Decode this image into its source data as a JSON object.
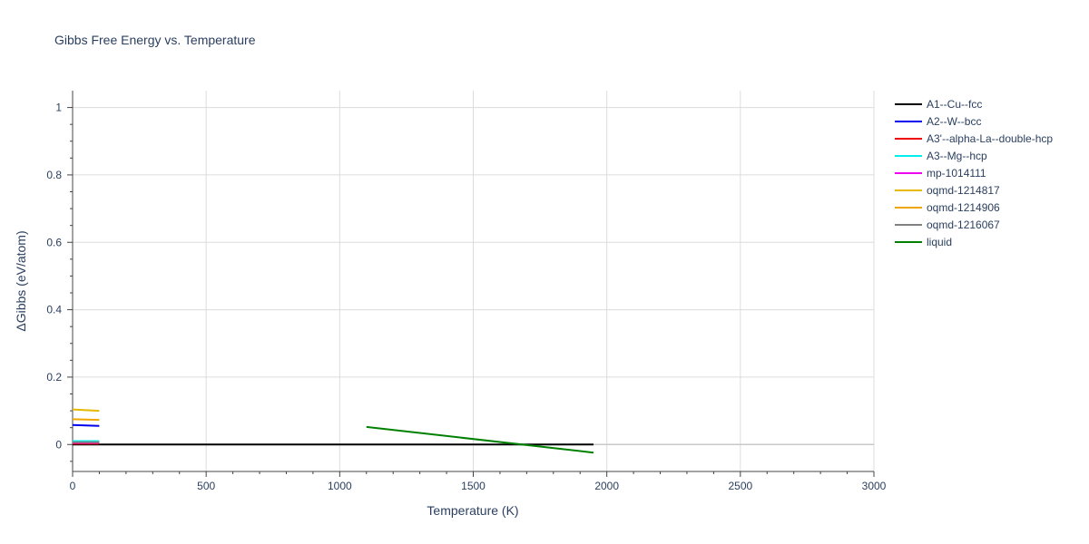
{
  "chart_data": {
    "type": "line",
    "title": "Gibbs Free Energy vs. Temperature",
    "xlabel": "Temperature (K)",
    "ylabel": "ΔGibbs (eV/atom)",
    "xlim": [
      0,
      3000
    ],
    "ylim": [
      -0.08,
      1.05
    ],
    "x_ticks": [
      0,
      500,
      1000,
      1500,
      2000,
      2500,
      3000
    ],
    "x_tick_labels": [
      "0",
      "500",
      "1000",
      "1500",
      "2000",
      "2500",
      "3000"
    ],
    "y_ticks": [
      0,
      0.2,
      0.4,
      0.6,
      0.8,
      1
    ],
    "y_tick_labels": [
      "0",
      "0.2",
      "0.4",
      "0.6",
      "0.8",
      "1"
    ],
    "grid": true,
    "legend_position": "right",
    "series": [
      {
        "name": "A1--Cu--fcc",
        "color": "#000000",
        "x": [
          0,
          1950
        ],
        "y": [
          0,
          0
        ]
      },
      {
        "name": "A2--W--bcc",
        "color": "#0000ee",
        "x": [
          0,
          100
        ],
        "y": [
          0.058,
          0.055
        ]
      },
      {
        "name": "A3'--alpha-La--double-hcp",
        "color": "#ee0000",
        "x": [
          0,
          100
        ],
        "y": [
          0.003,
          0.003
        ]
      },
      {
        "name": "A3--Mg--hcp",
        "color": "#00eeee",
        "x": [
          0,
          100
        ],
        "y": [
          0.01,
          0.01
        ]
      },
      {
        "name": "mp-1014111",
        "color": "#ee00ee",
        "x": [
          0,
          100
        ],
        "y": [
          0.005,
          0.005
        ]
      },
      {
        "name": "oqmd-1214817",
        "color": "#e6b800",
        "x": [
          0,
          100
        ],
        "y": [
          0.104,
          0.1
        ]
      },
      {
        "name": "oqmd-1214906",
        "color": "#f0a500",
        "x": [
          0,
          100
        ],
        "y": [
          0.075,
          0.073
        ]
      },
      {
        "name": "oqmd-1216067",
        "color": "#808080",
        "x": [
          0,
          100
        ],
        "y": [
          0.007,
          0.007
        ]
      },
      {
        "name": "liquid",
        "color": "#008000",
        "x": [
          1100,
          1950
        ],
        "y": [
          0.052,
          -0.024
        ]
      }
    ]
  }
}
